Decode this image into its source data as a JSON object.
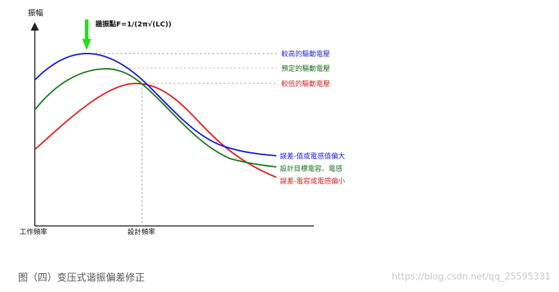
{
  "chart_data": {
    "type": "line",
    "title": "",
    "ylabel": "振幅",
    "x_ticks": [
      "工作頻率",
      "設計頻率"
    ],
    "annotation": "諧振點F=1/(2π√(LC))",
    "series": [
      {
        "name": "較高的驅動電壓",
        "end_label": "誤差-值或電感值偏大",
        "color": "#1a1adc",
        "peak_label_color": "#2b2bcc"
      },
      {
        "name": "預定的驅動電壓",
        "end_label": "設計目標電容、電感",
        "color": "#1c7a1c",
        "peak_label_color": "#1c6e1c"
      },
      {
        "name": "較低的驅動電壓",
        "end_label": "誤差-電容或電感偏小",
        "color": "#e01c1c",
        "peak_label_color": "#cc2a2a"
      }
    ],
    "colors": {
      "arrow": "#22dd22",
      "axis": "#222222",
      "dash": "#9a9ab8"
    }
  },
  "caption": "图（四）变压式谐振偏差修正",
  "watermark": "https://blog.csdn.net/qq_25595331"
}
